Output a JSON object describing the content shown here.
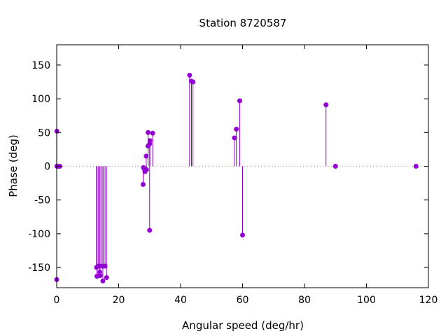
{
  "chart_data": {
    "type": "scatter",
    "title": "Station 8720587",
    "xlabel": "Angular speed (deg/hr)",
    "ylabel": "Phase (deg)",
    "xlim": [
      0,
      120
    ],
    "ylim": [
      -180,
      180
    ],
    "xticks": [
      0,
      20,
      40,
      60,
      80,
      100,
      120
    ],
    "yticks": [
      -150,
      -100,
      -50,
      0,
      50,
      100,
      150
    ],
    "grid": false,
    "zero_line": "dotted",
    "color": "#9400d3",
    "points": [
      {
        "x": 0.0,
        "y": -168
      },
      {
        "x": 0.04,
        "y": 52
      },
      {
        "x": 0.08,
        "y": 0
      },
      {
        "x": 0.5,
        "y": 0
      },
      {
        "x": 1.0,
        "y": 0
      },
      {
        "x": 12.85,
        "y": -150
      },
      {
        "x": 13.0,
        "y": -163
      },
      {
        "x": 13.4,
        "y": -148
      },
      {
        "x": 13.9,
        "y": -157
      },
      {
        "x": 14.0,
        "y": -162
      },
      {
        "x": 14.5,
        "y": -148
      },
      {
        "x": 14.9,
        "y": -170
      },
      {
        "x": 15.0,
        "y": -148
      },
      {
        "x": 15.6,
        "y": -148
      },
      {
        "x": 16.1,
        "y": -165
      },
      {
        "x": 27.9,
        "y": -27
      },
      {
        "x": 28.0,
        "y": -2
      },
      {
        "x": 28.4,
        "y": -5
      },
      {
        "x": 28.5,
        "y": -8
      },
      {
        "x": 28.9,
        "y": 15
      },
      {
        "x": 29.0,
        "y": -5
      },
      {
        "x": 29.5,
        "y": 30
      },
      {
        "x": 29.5,
        "y": 50
      },
      {
        "x": 30.0,
        "y": -95
      },
      {
        "x": 30.0,
        "y": 33
      },
      {
        "x": 30.1,
        "y": 38
      },
      {
        "x": 31.0,
        "y": 49
      },
      {
        "x": 42.9,
        "y": 135
      },
      {
        "x": 43.5,
        "y": 126
      },
      {
        "x": 44.0,
        "y": 125
      },
      {
        "x": 57.4,
        "y": 42
      },
      {
        "x": 58.0,
        "y": 55
      },
      {
        "x": 59.1,
        "y": 97
      },
      {
        "x": 60.0,
        "y": -102
      },
      {
        "x": 86.95,
        "y": 91
      },
      {
        "x": 90.0,
        "y": 0
      },
      {
        "x": 116.0,
        "y": 0
      }
    ]
  }
}
